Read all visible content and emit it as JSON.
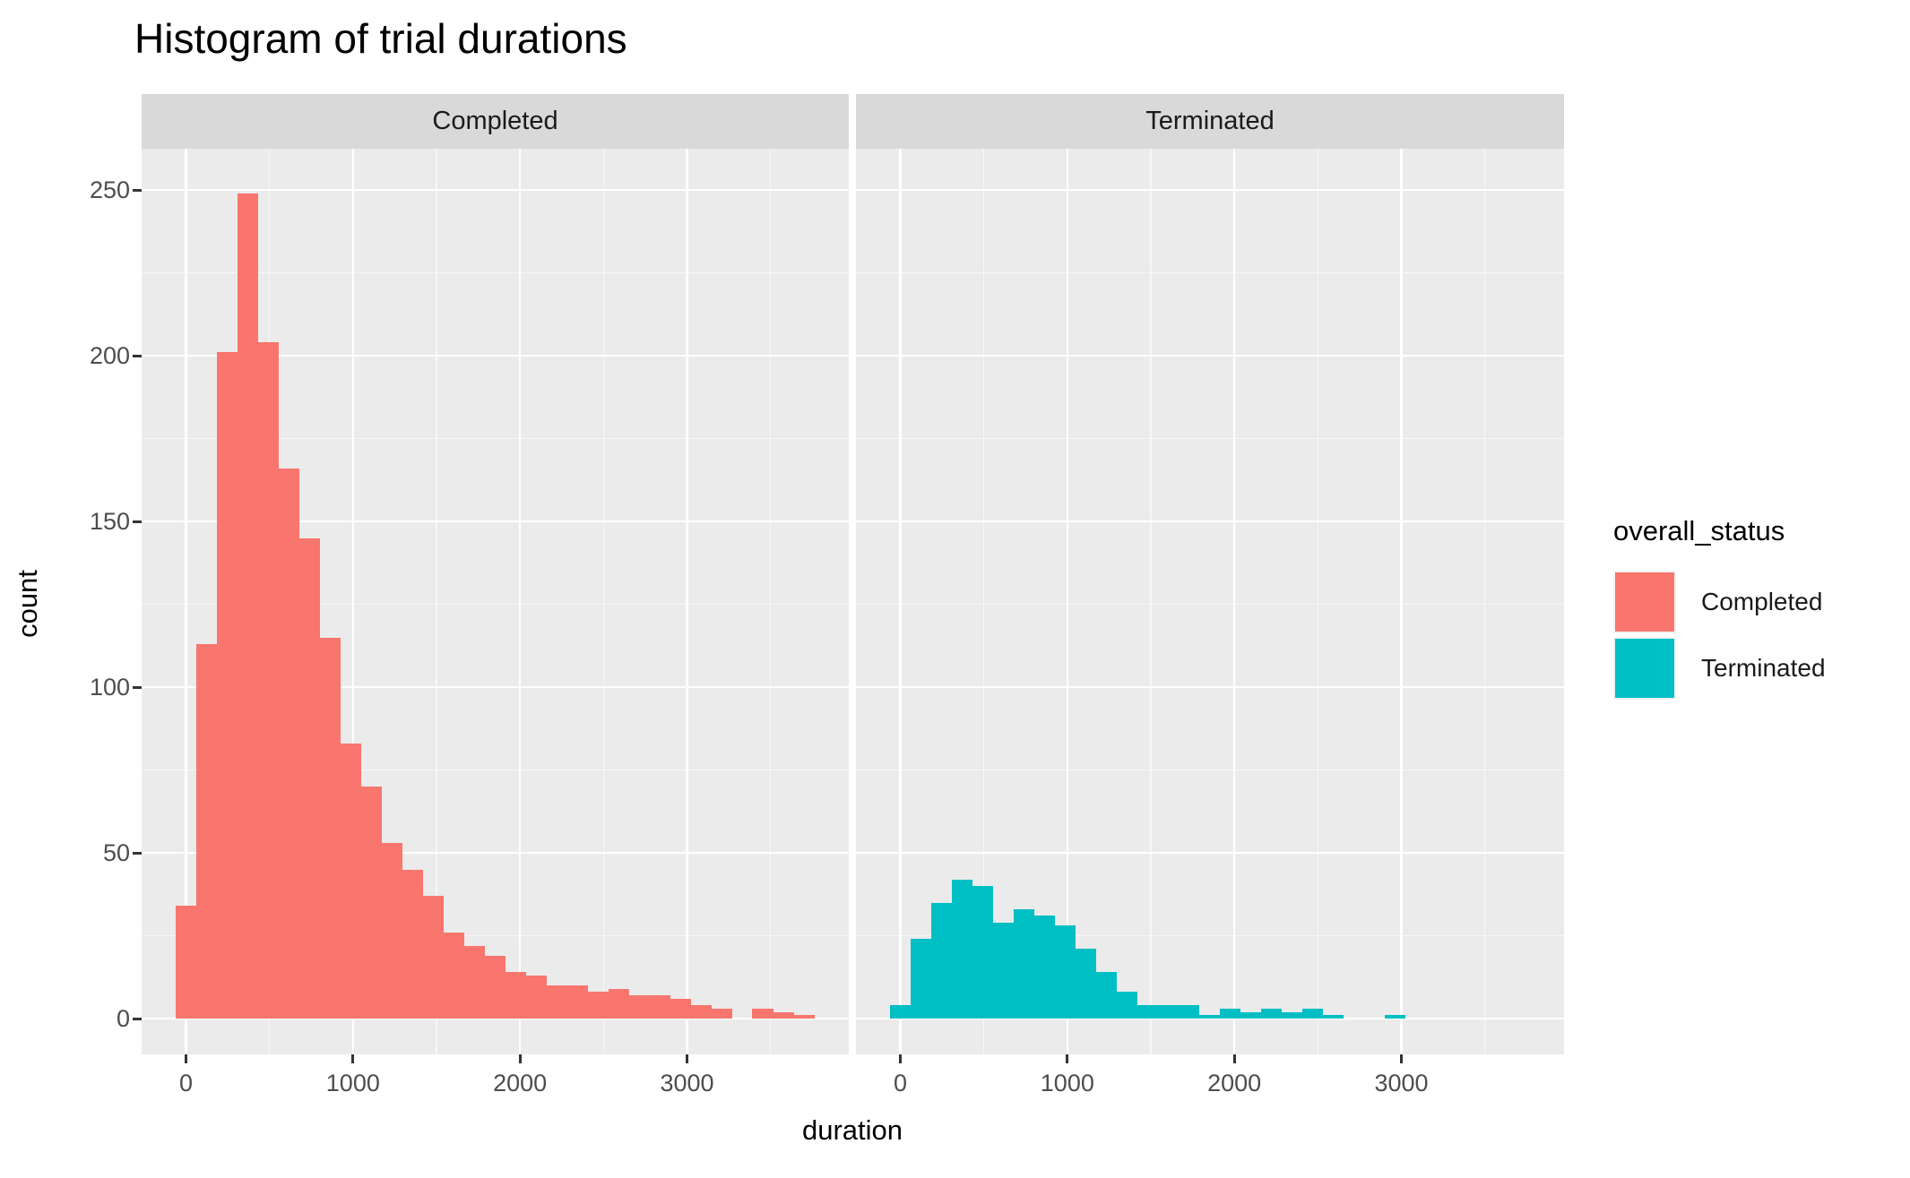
{
  "title": "Histogram of trial durations",
  "y_axis": {
    "title": "count",
    "ticks": [
      "0",
      "50",
      "100",
      "150",
      "200",
      "250"
    ],
    "tick_values": [
      0,
      50,
      100,
      150,
      200,
      250
    ],
    "minor_values": [
      25,
      75,
      125,
      175,
      225
    ]
  },
  "x_axis": {
    "title": "duration",
    "ticks": [
      "0",
      "1000",
      "2000",
      "3000"
    ],
    "tick_values": [
      0,
      1000,
      2000,
      3000
    ],
    "minor_values": [
      500,
      1500,
      2500,
      3500
    ]
  },
  "facets": [
    {
      "label": "Completed"
    },
    {
      "label": "Terminated"
    }
  ],
  "legend": {
    "title": "overall_status",
    "entries": [
      {
        "label": "Completed",
        "color": "#F8766D"
      },
      {
        "label": "Terminated",
        "color": "#00BFC4"
      }
    ]
  },
  "colors": {
    "panel_background": "#EBEBEB",
    "strip_background": "#D9D9D9",
    "gridline": "#FFFFFF",
    "tick_text": "#4D4D4D",
    "completed_fill": "#F8766D",
    "terminated_fill": "#00BFC4"
  },
  "chart_data": {
    "type": "bar",
    "subtype": "faceted-histogram",
    "title": "Histogram of trial durations",
    "xlabel": "duration",
    "ylabel": "count",
    "binwidth": 123.3,
    "xlim": [
      -62,
      3970
    ],
    "ylim": [
      0,
      250
    ],
    "grid": true,
    "legend_position": "right",
    "facets": [
      {
        "name": "Completed",
        "color": "#F8766D",
        "bin_centers": [
          0,
          123,
          247,
          370,
          493,
          617,
          740,
          863,
          987,
          1110,
          1233,
          1357,
          1480,
          1603,
          1727,
          1850,
          1973,
          2097,
          2220,
          2343,
          2467,
          2590,
          2713,
          2837,
          2960,
          3083,
          3207,
          3330,
          3453,
          3577,
          3700
        ],
        "counts": [
          34,
          113,
          201,
          249,
          204,
          166,
          145,
          115,
          83,
          70,
          53,
          45,
          37,
          26,
          22,
          19,
          14,
          13,
          10,
          10,
          8,
          9,
          7,
          7,
          6,
          4,
          3,
          0,
          3,
          2,
          1
        ]
      },
      {
        "name": "Terminated",
        "color": "#00BFC4",
        "bin_centers": [
          0,
          123,
          247,
          370,
          493,
          617,
          740,
          863,
          987,
          1110,
          1233,
          1357,
          1480,
          1603,
          1727,
          1850,
          1973,
          2097,
          2220,
          2343,
          2467,
          2590,
          2713,
          2837,
          2960
        ],
        "counts": [
          4,
          24,
          35,
          42,
          40,
          29,
          33,
          31,
          28,
          21,
          14,
          8,
          4,
          4,
          4,
          1,
          3,
          2,
          3,
          2,
          3,
          1,
          0,
          0,
          1
        ]
      }
    ]
  }
}
